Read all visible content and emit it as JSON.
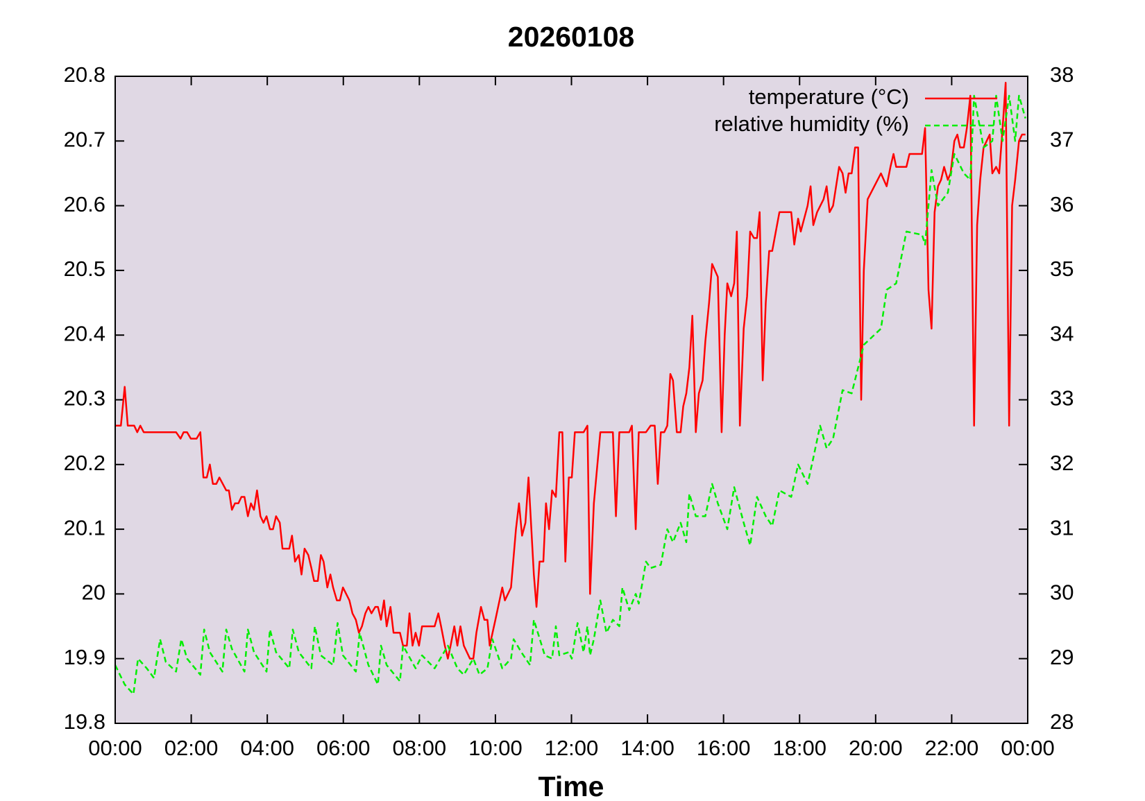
{
  "chart_data": {
    "type": "line",
    "title": "20260108",
    "x_label": "Time",
    "xlim": [
      0,
      24
    ],
    "xticks": [
      {
        "value": 0,
        "label": "00:00"
      },
      {
        "value": 2,
        "label": "02:00"
      },
      {
        "value": 4,
        "label": "04:00"
      },
      {
        "value": 6,
        "label": "06:00"
      },
      {
        "value": 8,
        "label": "08:00"
      },
      {
        "value": 10,
        "label": "10:00"
      },
      {
        "value": 12,
        "label": "12:00"
      },
      {
        "value": 14,
        "label": "14:00"
      },
      {
        "value": 16,
        "label": "16:00"
      },
      {
        "value": 18,
        "label": "18:00"
      },
      {
        "value": 20,
        "label": "20:00"
      },
      {
        "value": 22,
        "label": "22:00"
      },
      {
        "value": 24,
        "label": "00:00"
      }
    ],
    "ylim": [
      19.8,
      20.8
    ],
    "yticks": [
      19.8,
      19.9,
      20,
      20.1,
      20.2,
      20.3,
      20.4,
      20.5,
      20.6,
      20.7,
      20.8
    ],
    "y2lim": [
      28,
      38
    ],
    "y2ticks": [
      28,
      29,
      30,
      31,
      32,
      33,
      34,
      35,
      36,
      37,
      38
    ],
    "legend": "top-right",
    "background": "#e0d8e4",
    "series": [
      {
        "name": "temperature (°C)",
        "color": "#ff0000",
        "dashed": false,
        "x": [
          0,
          0.15,
          0.25,
          0.33,
          0.5,
          0.58,
          0.66,
          0.75,
          1.6,
          1.72,
          1.8,
          1.89,
          1.99,
          2.14,
          2.24,
          2.32,
          2.41,
          2.49,
          2.57,
          2.66,
          2.74,
          2.92,
          2.99,
          3.07,
          3.15,
          3.24,
          3.32,
          3.4,
          3.49,
          3.57,
          3.65,
          3.73,
          3.82,
          3.9,
          3.98,
          4.07,
          4.15,
          4.23,
          4.33,
          4.4,
          4.58,
          4.65,
          4.73,
          4.83,
          4.9,
          4.98,
          5.08,
          5.16,
          5.23,
          5.33,
          5.41,
          5.48,
          5.58,
          5.66,
          5.73,
          5.83,
          5.91,
          5.99,
          6.16,
          6.24,
          6.33,
          6.41,
          6.49,
          6.58,
          6.66,
          6.74,
          6.84,
          6.91,
          6.99,
          7.07,
          7.14,
          7.24,
          7.32,
          7.49,
          7.57,
          7.67,
          7.74,
          7.82,
          7.9,
          7.99,
          8.07,
          8.4,
          8.5,
          8.57,
          8.67,
          8.75,
          8.82,
          8.92,
          9.0,
          9.08,
          9.17,
          9.33,
          9.42,
          9.5,
          9.62,
          9.71,
          9.79,
          9.85,
          10.0,
          10.18,
          10.25,
          10.41,
          10.54,
          10.62,
          10.7,
          10.79,
          10.87,
          11.01,
          11.08,
          11.16,
          11.26,
          11.33,
          11.41,
          11.49,
          11.59,
          11.68,
          11.76,
          11.84,
          11.93,
          12.01,
          12.09,
          12.32,
          12.42,
          12.49,
          12.59,
          12.76,
          13.09,
          13.17,
          13.26,
          13.52,
          13.59,
          13.69,
          13.77,
          13.96,
          14.08,
          14.19,
          14.27,
          14.35,
          14.44,
          14.52,
          14.6,
          14.67,
          14.77,
          14.87,
          14.94,
          15.02,
          15.1,
          15.18,
          15.27,
          15.35,
          15.45,
          15.52,
          15.62,
          15.7,
          15.85,
          15.95,
          16.03,
          16.1,
          16.2,
          16.28,
          16.35,
          16.43,
          16.53,
          16.62,
          16.7,
          16.8,
          16.88,
          16.95,
          17.03,
          17.11,
          17.2,
          17.28,
          17.47,
          17.73,
          17.78,
          17.86,
          17.96,
          18.03,
          18.21,
          18.29,
          18.36,
          18.46,
          18.63,
          18.71,
          18.79,
          18.88,
          19.04,
          19.13,
          19.21,
          19.29,
          19.37,
          19.46,
          19.54,
          19.62,
          19.69,
          19.79,
          20.14,
          20.29,
          20.39,
          20.47,
          20.54,
          20.81,
          20.89,
          21.22,
          21.3,
          21.39,
          21.47,
          21.55,
          21.64,
          21.72,
          21.8,
          21.9,
          21.97,
          22.07,
          22.15,
          22.22,
          22.32,
          22.4,
          22.49,
          22.59,
          22.67,
          22.75,
          22.84,
          22.92,
          23.0,
          23.07,
          23.17,
          23.25,
          23.34,
          23.42,
          23.51,
          23.59,
          23.67,
          23.77,
          23.85,
          23.94
        ],
        "values": [
          20.26,
          20.26,
          20.32,
          20.26,
          20.26,
          20.25,
          20.26,
          20.25,
          20.25,
          20.24,
          20.25,
          20.25,
          20.24,
          20.24,
          20.25,
          20.18,
          20.18,
          20.2,
          20.17,
          20.17,
          20.18,
          20.16,
          20.16,
          20.13,
          20.14,
          20.14,
          20.15,
          20.15,
          20.12,
          20.14,
          20.13,
          20.16,
          20.12,
          20.11,
          20.12,
          20.1,
          20.1,
          20.12,
          20.11,
          20.07,
          20.07,
          20.09,
          20.05,
          20.06,
          20.03,
          20.07,
          20.06,
          20.04,
          20.02,
          20.02,
          20.06,
          20.05,
          20.01,
          20.03,
          20.01,
          19.99,
          19.99,
          20.01,
          19.99,
          19.97,
          19.96,
          19.94,
          19.95,
          19.97,
          19.98,
          19.97,
          19.98,
          19.98,
          19.96,
          19.99,
          19.95,
          19.98,
          19.94,
          19.94,
          19.92,
          19.92,
          19.97,
          19.92,
          19.94,
          19.92,
          19.95,
          19.95,
          19.97,
          19.95,
          19.92,
          19.9,
          19.92,
          19.95,
          19.92,
          19.95,
          19.92,
          19.9,
          19.9,
          19.94,
          19.98,
          19.96,
          19.96,
          19.92,
          19.96,
          20.01,
          19.99,
          20.01,
          20.1,
          20.14,
          20.09,
          20.11,
          20.18,
          20.03,
          19.98,
          20.05,
          20.05,
          20.14,
          20.1,
          20.16,
          20.15,
          20.25,
          20.25,
          20.05,
          20.18,
          20.18,
          20.25,
          20.25,
          20.26,
          20.0,
          20.14,
          20.25,
          20.25,
          20.12,
          20.25,
          20.25,
          20.26,
          20.1,
          20.25,
          20.25,
          20.26,
          20.26,
          20.17,
          20.25,
          20.25,
          20.26,
          20.34,
          20.33,
          20.25,
          20.25,
          20.29,
          20.31,
          20.35,
          20.43,
          20.25,
          20.31,
          20.33,
          20.39,
          20.45,
          20.51,
          20.49,
          20.25,
          20.4,
          20.48,
          20.46,
          20.48,
          20.56,
          20.26,
          20.41,
          20.46,
          20.56,
          20.55,
          20.55,
          20.59,
          20.33,
          20.45,
          20.53,
          20.53,
          20.59,
          20.59,
          20.59,
          20.54,
          20.58,
          20.56,
          20.6,
          20.63,
          20.57,
          20.59,
          20.61,
          20.63,
          20.59,
          20.6,
          20.66,
          20.65,
          20.62,
          20.65,
          20.65,
          20.69,
          20.69,
          20.3,
          20.5,
          20.61,
          20.65,
          20.63,
          20.66,
          20.68,
          20.66,
          20.66,
          20.68,
          20.68,
          20.72,
          20.47,
          20.41,
          20.59,
          20.63,
          20.64,
          20.66,
          20.64,
          20.65,
          20.7,
          20.71,
          20.69,
          20.69,
          20.72,
          20.77,
          20.26,
          20.57,
          20.64,
          20.69,
          20.7,
          20.71,
          20.65,
          20.66,
          20.65,
          20.72,
          20.79,
          20.26,
          20.6,
          20.64,
          20.7,
          20.71,
          20.71
        ]
      },
      {
        "name": "relative humidity (%)",
        "color": "#00ee00",
        "dashed": true,
        "axis": "y2",
        "x": [
          0,
          0.25,
          0.48,
          0.6,
          0.83,
          1.02,
          1.18,
          1.33,
          1.6,
          1.74,
          1.89,
          2.24,
          2.34,
          2.49,
          2.82,
          2.92,
          3.07,
          3.4,
          3.49,
          3.65,
          3.98,
          4.07,
          4.23,
          4.58,
          4.67,
          4.83,
          5.16,
          5.25,
          5.41,
          5.73,
          5.85,
          5.99,
          6.33,
          6.43,
          6.66,
          6.91,
          6.99,
          7.14,
          7.49,
          7.57,
          7.9,
          8.07,
          8.4,
          8.75,
          9.0,
          9.17,
          9.42,
          9.58,
          9.79,
          9.92,
          10.18,
          10.41,
          10.48,
          10.68,
          10.91,
          11.01,
          11.3,
          11.49,
          11.59,
          11.68,
          11.93,
          12.01,
          12.16,
          12.32,
          12.42,
          12.49,
          12.59,
          12.76,
          12.92,
          13.09,
          13.26,
          13.34,
          13.52,
          13.69,
          13.77,
          13.96,
          14.08,
          14.35,
          14.52,
          14.67,
          14.87,
          15.02,
          15.1,
          15.27,
          15.52,
          15.7,
          15.85,
          16.1,
          16.28,
          16.53,
          16.7,
          16.88,
          17.11,
          17.28,
          17.47,
          17.78,
          17.96,
          18.21,
          18.36,
          18.54,
          18.71,
          18.88,
          19.13,
          19.37,
          19.69,
          20.14,
          20.29,
          20.54,
          20.81,
          21.22,
          21.3,
          21.47,
          21.64,
          21.9,
          22.07,
          22.32,
          22.49,
          22.59,
          22.84,
          23.07,
          23.17,
          23.34,
          23.51,
          23.67,
          23.77,
          23.94
        ],
        "values": [
          28.9,
          28.6,
          28.45,
          29.0,
          28.85,
          28.7,
          29.3,
          28.95,
          28.8,
          29.3,
          29.0,
          28.75,
          29.45,
          29.1,
          28.8,
          29.45,
          29.15,
          28.8,
          29.45,
          29.1,
          28.8,
          29.45,
          29.1,
          28.85,
          29.45,
          29.1,
          28.85,
          29.5,
          29.05,
          28.9,
          29.55,
          29.05,
          28.8,
          29.4,
          28.9,
          28.6,
          29.2,
          28.9,
          28.65,
          29.2,
          28.85,
          29.05,
          28.85,
          29.2,
          28.85,
          28.75,
          29.0,
          28.75,
          28.85,
          29.3,
          28.85,
          29.0,
          29.3,
          29.1,
          28.9,
          29.6,
          29.05,
          29.0,
          29.5,
          29.05,
          29.1,
          29.0,
          29.55,
          29.1,
          29.5,
          29.05,
          29.3,
          29.9,
          29.4,
          29.6,
          29.5,
          30.1,
          29.75,
          30.0,
          29.85,
          30.5,
          30.4,
          30.45,
          31.0,
          30.8,
          31.1,
          30.8,
          31.55,
          31.2,
          31.2,
          31.7,
          31.4,
          31.0,
          31.65,
          31.1,
          30.75,
          31.5,
          31.2,
          31.05,
          31.6,
          31.5,
          32.0,
          31.7,
          32.1,
          32.6,
          32.25,
          32.4,
          33.15,
          33.1,
          33.85,
          34.1,
          34.7,
          34.8,
          35.6,
          35.55,
          35.4,
          36.55,
          36.0,
          36.2,
          36.8,
          36.5,
          36.4,
          37.7,
          36.9,
          37.0,
          37.7,
          37.0,
          37.7,
          37.0,
          37.7,
          37.35
        ]
      }
    ]
  }
}
